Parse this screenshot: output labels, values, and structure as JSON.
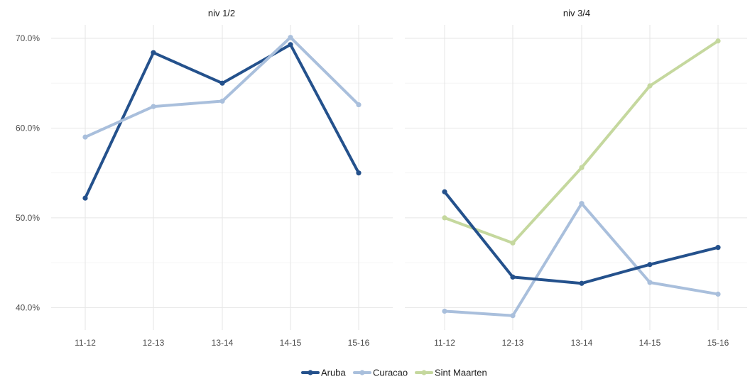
{
  "chart_data": {
    "type": "line",
    "categories": [
      "11-12",
      "12-13",
      "13-14",
      "14-15",
      "15-16"
    ],
    "y_tick_labels": [
      "40.0%",
      "50.0%",
      "60.0%",
      "70.0%"
    ],
    "y_ticks": [
      40,
      50,
      60,
      70
    ],
    "ylim": [
      37.5,
      71.5
    ],
    "grid": true,
    "legend_position": "bottom",
    "legend": [
      {
        "name": "Aruba",
        "color": "#24518c"
      },
      {
        "name": "Curacao",
        "color": "#a9bfdc"
      },
      {
        "name": "Sint Maarten",
        "color": "#c5d89e"
      }
    ],
    "panels": [
      {
        "title": "niv 1/2",
        "series": [
          {
            "name": "Aruba",
            "color": "#24518c",
            "values": [
              52.2,
              68.4,
              65.0,
              69.3,
              55.0
            ]
          },
          {
            "name": "Curacao",
            "color": "#a9bfdc",
            "values": [
              59.0,
              62.4,
              63.0,
              70.1,
              62.6
            ]
          }
        ]
      },
      {
        "title": "niv 3/4",
        "series": [
          {
            "name": "Curacao",
            "color": "#a9bfdc",
            "values": [
              39.6,
              39.1,
              51.6,
              42.8,
              41.5
            ]
          },
          {
            "name": "Sint Maarten",
            "color": "#c5d89e",
            "values": [
              50.0,
              47.2,
              55.6,
              64.7,
              69.7
            ]
          },
          {
            "name": "Aruba",
            "color": "#24518c",
            "values": [
              52.9,
              43.4,
              42.7,
              44.8,
              46.7
            ]
          }
        ]
      }
    ]
  }
}
